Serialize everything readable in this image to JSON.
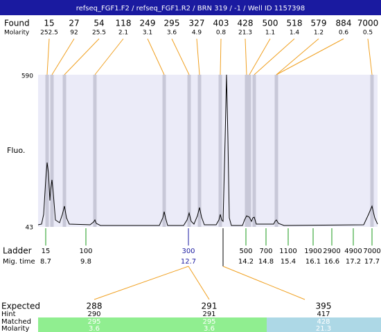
{
  "header": {
    "title": "refseq_FGF1.F2 / refseq_FGF1.R2 / BRN 319 / -1 / Well ID 1157398"
  },
  "found": {
    "label": "Found",
    "molarity_label": "Molarity",
    "sizes": [
      15,
      27,
      54,
      118,
      249,
      295,
      327,
      403,
      428,
      500,
      518,
      579,
      884,
      7000
    ],
    "molarity": [
      252.5,
      92,
      25.5,
      2.1,
      3.1,
      3.6,
      4.9,
      0.8,
      21.3,
      1.1,
      1.4,
      1.2,
      0.6,
      0.5
    ]
  },
  "axis": {
    "top": 590,
    "bottom": 43,
    "label": "Fluo."
  },
  "ladder": {
    "label": "Ladder",
    "mig_label": "Mig. time",
    "sizes": [
      15,
      100,
      300,
      500,
      700,
      1100,
      1900,
      2900,
      4900,
      7000
    ],
    "mig_times": [
      8.7,
      9.8,
      12.7,
      14.2,
      14.8,
      15.4,
      16.1,
      16.6,
      17.2,
      17.7
    ]
  },
  "expected": {
    "row_labels": [
      "Expected",
      "Hint",
      "Matched",
      "Molarity"
    ],
    "columns": [
      [
        288,
        290,
        295,
        3.6
      ],
      [
        291,
        291,
        295,
        3.6
      ],
      [
        395,
        417,
        428,
        21.3
      ]
    ]
  }
}
